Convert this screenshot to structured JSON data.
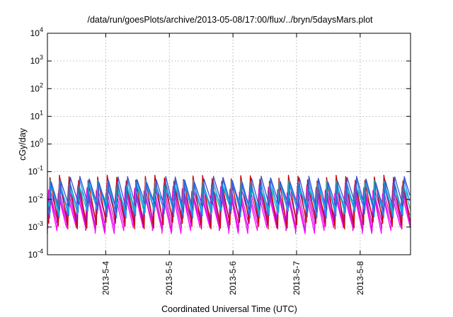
{
  "chart_data": {
    "type": "line",
    "title": "/data/run/goesPlots/archive/2013-05-08/17:00/flux/../bryn/5daysMars.plot",
    "xlabel": "Coordinated Universal Time (UTC)",
    "ylabel": "cGy/day",
    "yscale": "log",
    "ylim": [
      0.0001,
      10000
    ],
    "xlim": [
      "2013-05-03 02:00",
      "2013-05-08 19:00"
    ],
    "grid": true,
    "y_ticks": [
      {
        "base": "10",
        "exp": "-4"
      },
      {
        "base": "10",
        "exp": "-3"
      },
      {
        "base": "10",
        "exp": "-2"
      },
      {
        "base": "10",
        "exp": "-1"
      },
      {
        "base": "10",
        "exp": "0"
      },
      {
        "base": "10",
        "exp": "1"
      },
      {
        "base": "10",
        "exp": "2"
      },
      {
        "base": "10",
        "exp": "3"
      },
      {
        "base": "10",
        "exp": "4"
      }
    ],
    "x_ticks": [
      {
        "date": "2013-05-04",
        "label": "2013-5-4"
      },
      {
        "date": "2013-05-05",
        "label": "2013-5-5"
      },
      {
        "date": "2013-05-06",
        "label": "2013-5-6"
      },
      {
        "date": "2013-05-07",
        "label": "2013-5-7"
      },
      {
        "date": "2013-05-08",
        "label": "2013-5-8"
      }
    ],
    "sawtooth_period_hours": 3.6,
    "series": [
      {
        "color": "#ff00ff",
        "peak": 0.018,
        "trough": 0.0008
      },
      {
        "color": "#e010e0",
        "peak": 0.022,
        "trough": 0.001
      },
      {
        "color": "#d020c0",
        "peak": 0.026,
        "trough": 0.0013
      },
      {
        "color": "#8a2be2",
        "peak": 0.032,
        "trough": 0.002
      },
      {
        "color": "#cc0000",
        "peak": 0.06,
        "trough": 0.0012
      },
      {
        "color": "#20b2aa",
        "peak": 0.04,
        "trough": 0.004
      },
      {
        "color": "#00ced1",
        "peak": 0.03,
        "trough": 0.006
      },
      {
        "color": "#1e90ff",
        "peak": 0.045,
        "trough": 0.003
      },
      {
        "color": "#3a4fd0",
        "peak": 0.055,
        "trough": 0.005
      }
    ]
  }
}
